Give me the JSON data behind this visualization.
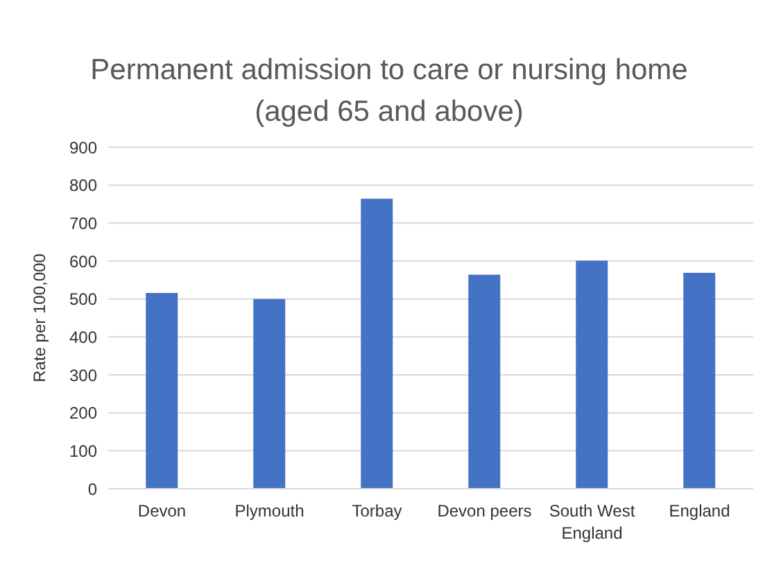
{
  "chart_data": {
    "type": "bar",
    "title": "Permanent admission to care or nursing home",
    "subtitle": "(aged 65 and above)",
    "ylabel": "Rate per 100,000",
    "categories": [
      "Devon",
      "Plymouth",
      "Torbay",
      "Devon peers",
      "South West England",
      "England"
    ],
    "values": [
      516,
      500,
      764,
      564,
      601,
      569
    ],
    "color": "#4472c4",
    "ylim": [
      0,
      900
    ],
    "yticks": [
      0,
      100,
      200,
      300,
      400,
      500,
      600,
      700,
      800,
      900
    ],
    "grid": "y"
  }
}
